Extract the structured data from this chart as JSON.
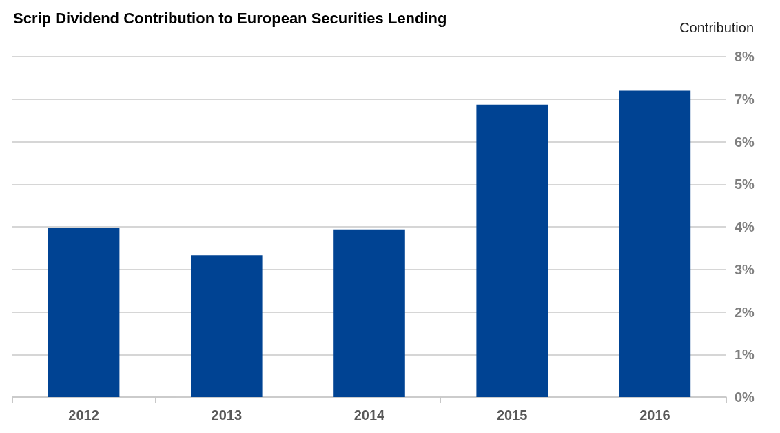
{
  "chart_data": {
    "type": "bar",
    "title": "Scrip Dividend Contribution to European Securities Lending",
    "ylabel": "Contribution",
    "categories": [
      "2012",
      "2013",
      "2014",
      "2015",
      "2016"
    ],
    "values": [
      3.97,
      3.33,
      3.94,
      6.87,
      7.2
    ],
    "color": "#004393",
    "ylim": [
      0,
      8
    ],
    "yticks": [
      {
        "value": 0,
        "label": "0%"
      },
      {
        "value": 1,
        "label": "1%"
      },
      {
        "value": 2,
        "label": "2%"
      },
      {
        "value": 3,
        "label": "3%"
      },
      {
        "value": 4,
        "label": "4%"
      },
      {
        "value": 5,
        "label": "5%"
      },
      {
        "value": 6,
        "label": "6%"
      },
      {
        "value": 7,
        "label": "7%"
      },
      {
        "value": 8,
        "label": "8%"
      }
    ],
    "grid": "y"
  }
}
